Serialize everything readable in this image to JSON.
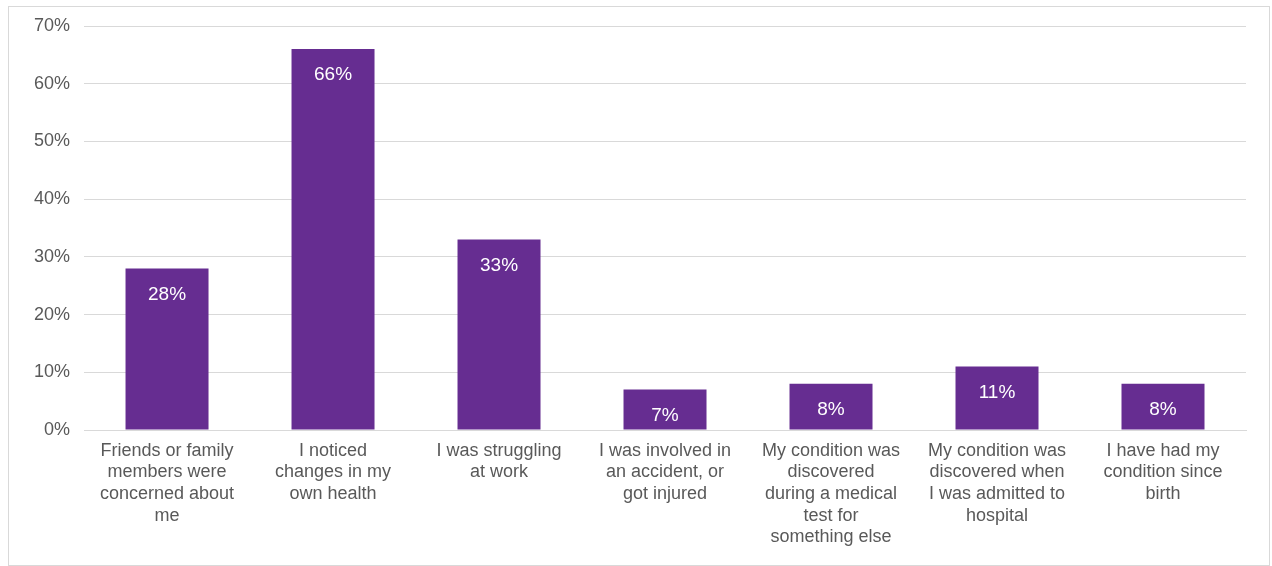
{
  "chart_data": {
    "type": "bar",
    "categories": [
      "Friends or family members were concerned about me",
      "I noticed changes in my own health",
      "I was struggling at work",
      "I was involved in an accident, or got injured",
      "My condition was discovered during a medical test for something else",
      "My condition was discovered when I was admitted to hospital",
      "I have had my condition since birth"
    ],
    "values": [
      28,
      66,
      33,
      7,
      8,
      11,
      8
    ],
    "value_labels": [
      "28%",
      "66%",
      "33%",
      "7%",
      "8%",
      "11%",
      "8%"
    ],
    "color": "#662d91",
    "ylim": [
      0,
      70
    ],
    "yticks": [
      {
        "value": 0,
        "label": "0%"
      },
      {
        "value": 10,
        "label": "10%"
      },
      {
        "value": 20,
        "label": "20%"
      },
      {
        "value": 30,
        "label": "30%"
      },
      {
        "value": 40,
        "label": "40%"
      },
      {
        "value": 50,
        "label": "50%"
      },
      {
        "value": 60,
        "label": "60%"
      },
      {
        "value": 70,
        "label": "70%"
      }
    ],
    "grid": "y",
    "legend": false
  }
}
